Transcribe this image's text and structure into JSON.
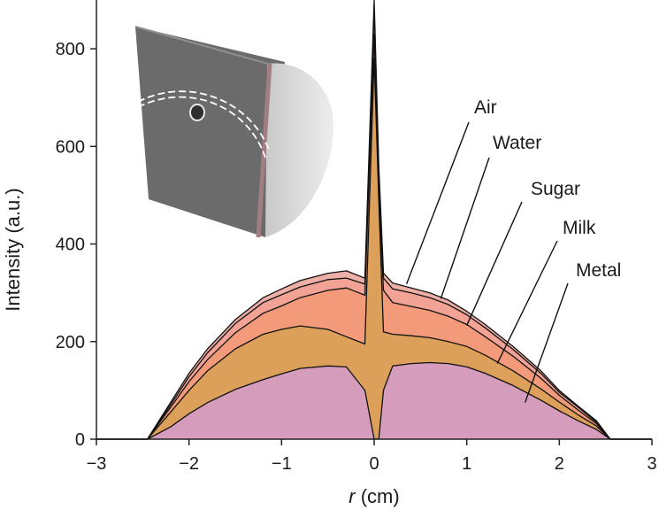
{
  "chart_data": {
    "type": "area",
    "xlabel_var": "r",
    "xlabel_unit": " (cm)",
    "ylabel": "Intensity (a.u.)",
    "xlim": [
      -3,
      3
    ],
    "ylim": [
      0,
      900
    ],
    "x_ticks": [
      -3,
      -2,
      -1,
      0,
      1,
      2,
      3
    ],
    "x_tick_labels": [
      "−3",
      "−2",
      "−1",
      "0",
      "1",
      "2",
      "3"
    ],
    "y_ticks": [
      0,
      200,
      400,
      600,
      800
    ],
    "y_tick_labels": [
      "0",
      "200",
      "400",
      "600",
      "800"
    ],
    "grid": false,
    "legend": "direct labels with leader lines (upper right)",
    "inset": "half-cylinder phantom with circular hole and dashed path",
    "x": [
      -3.0,
      -2.6,
      -2.45,
      -2.2,
      -2.0,
      -1.8,
      -1.5,
      -1.2,
      -1.0,
      -0.8,
      -0.5,
      -0.3,
      -0.1,
      0.0,
      0.05,
      0.1,
      0.2,
      0.4,
      0.6,
      0.8,
      1.0,
      1.2,
      1.5,
      1.8,
      2.0,
      2.2,
      2.4,
      2.55,
      2.7,
      3.0
    ],
    "series": [
      {
        "name": "Air",
        "color": "#edafa6",
        "values": [
          0,
          0,
          0,
          75,
          135,
          185,
          245,
          290,
          308,
          325,
          340,
          345,
          330,
          900,
          560,
          340,
          320,
          310,
          300,
          285,
          262,
          235,
          190,
          140,
          100,
          68,
          38,
          0,
          0,
          0
        ]
      },
      {
        "name": "Water",
        "color": "#f2a395",
        "values": [
          0,
          0,
          0,
          70,
          128,
          177,
          237,
          280,
          296,
          312,
          327,
          330,
          318,
          880,
          545,
          330,
          308,
          300,
          290,
          276,
          255,
          228,
          184,
          135,
          96,
          66,
          35,
          0,
          0,
          0
        ]
      },
      {
        "name": "Sugar",
        "color": "#f39a7a",
        "values": [
          0,
          0,
          0,
          65,
          118,
          163,
          218,
          258,
          273,
          290,
          305,
          310,
          295,
          830,
          520,
          305,
          280,
          272,
          264,
          252,
          235,
          210,
          170,
          125,
          90,
          60,
          32,
          0,
          0,
          0
        ]
      },
      {
        "name": "Milk",
        "color": "#dda05a",
        "values": [
          0,
          0,
          0,
          55,
          100,
          140,
          185,
          215,
          225,
          232,
          225,
          210,
          195,
          780,
          490,
          220,
          215,
          212,
          208,
          200,
          190,
          172,
          140,
          103,
          76,
          50,
          27,
          0,
          0,
          0
        ]
      },
      {
        "name": "Metal",
        "color": "#d59cbb",
        "values": [
          0,
          0,
          0,
          25,
          52,
          75,
          102,
          122,
          134,
          145,
          150,
          148,
          100,
          0,
          0,
          100,
          150,
          155,
          157,
          155,
          148,
          135,
          110,
          80,
          58,
          38,
          20,
          0,
          0,
          0
        ]
      }
    ]
  }
}
